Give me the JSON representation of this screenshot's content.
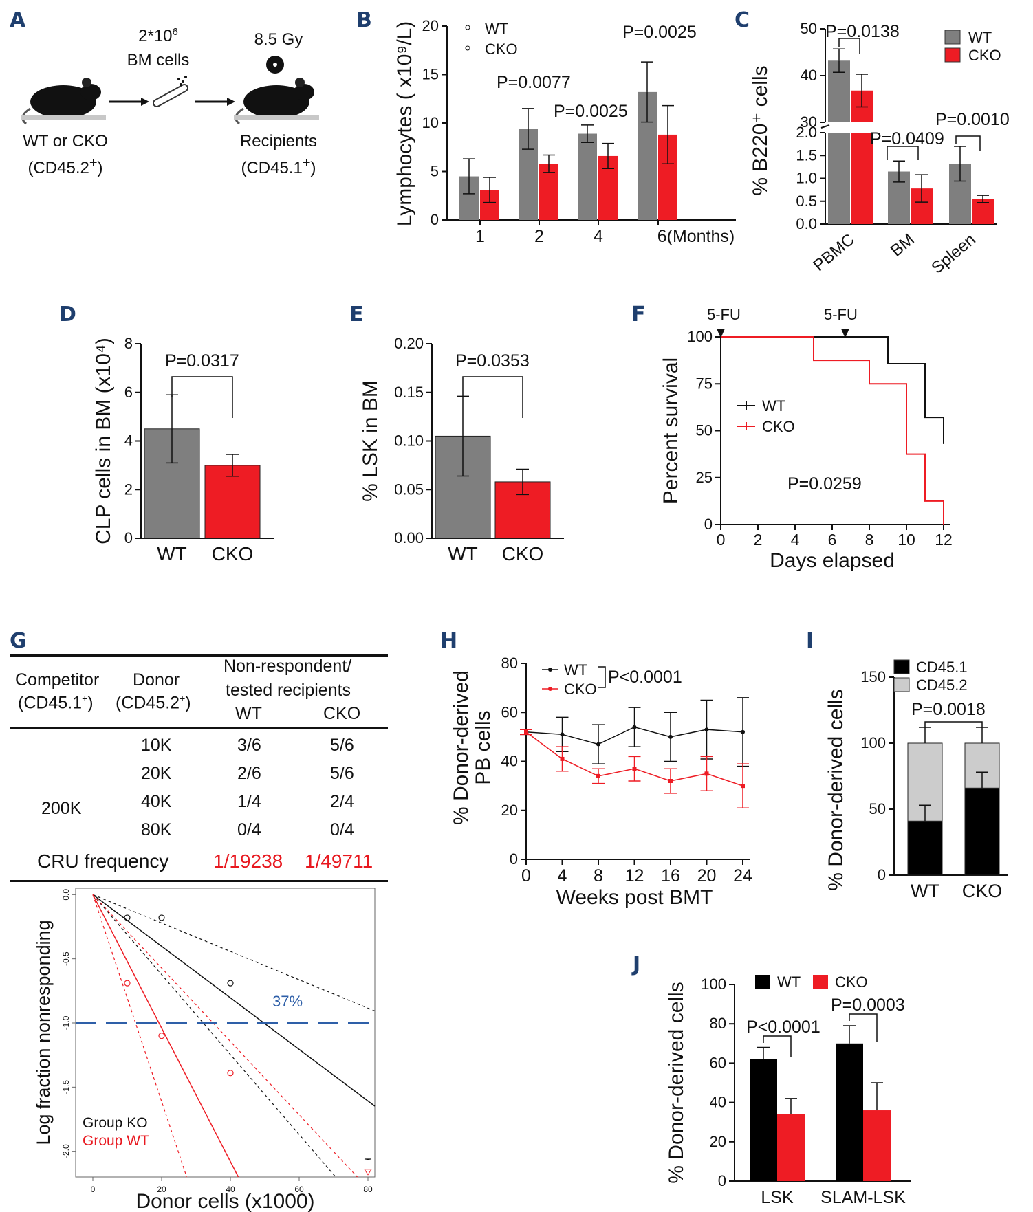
{
  "colors": {
    "wt": "#7f7f7f",
    "cko": "#ee1c24",
    "black": "#000000",
    "lightgray": "#cccccc",
    "blue": "#2e5fa8",
    "red": "#e8181f"
  },
  "panelA": {
    "label": "A",
    "cells": "2*10",
    "cells_sup": "6",
    "cells2": "BM cells",
    "dose": "8.5 Gy",
    "donor": "WT or CKO",
    "donor_marker": "(CD45.2",
    "recipient": "Recipients",
    "recipient_marker": "(CD45.1",
    "plus": "+",
    ")": ")",
    "icons": [
      "mouse-icon",
      "bone-icon",
      "radiation-icon"
    ]
  },
  "panelB": {
    "label": "B",
    "p_values": [
      "P=0.0077",
      "P=0.0025",
      "P=0.0025"
    ]
  },
  "panelC": {
    "label": "C",
    "p_values": [
      "P=0.0138",
      "P=0.0409",
      "P=0.0010"
    ]
  },
  "panelD": {
    "label": "D",
    "p_value": "P=0.0317"
  },
  "panelE": {
    "label": "E",
    "p_value": "P=0.0353"
  },
  "panelF": {
    "label": "F",
    "p_value": "P=0.0259",
    "annotations": [
      "5-FU",
      "5-FU"
    ]
  },
  "panelG": {
    "label": "G",
    "headers": {
      "competitor": "Competitor",
      "competitor_sub": "(CD45.1",
      "donor": "Donor",
      "donor_sub": "(CD45.2",
      "nonresp": "Non-respondent/",
      "tested": "tested recipients",
      "wt": "WT",
      "cko": "CKO"
    },
    "competitor_value": "200K",
    "rows": [
      {
        "donor": "10K",
        "wt": "3/6",
        "cko": "5/6"
      },
      {
        "donor": "20K",
        "wt": "2/6",
        "cko": "5/6"
      },
      {
        "donor": "40K",
        "wt": "1/4",
        "cko": "2/4"
      },
      {
        "donor": "80K",
        "wt": "0/4",
        "cko": "0/4"
      }
    ],
    "cru_label": "CRU frequency",
    "cru_wt": "1/19238",
    "cru_cko": "1/49711",
    "pct37": "37%",
    "legend": [
      "Group KO",
      "Group WT"
    ]
  },
  "panelH": {
    "label": "H",
    "p_value": "P<0.0001"
  },
  "panelI": {
    "label": "I",
    "p_value": "P=0.0018"
  },
  "panelJ": {
    "label": "J",
    "p_values": [
      "P<0.0001",
      "P=0.0003"
    ]
  },
  "chart_data": [
    {
      "id": "B",
      "type": "bar",
      "title": "",
      "xlabel": "",
      "ylabel": "Lymphocytes ( x10⁹/L)",
      "categories": [
        "1",
        "2",
        "4",
        "6(Months)"
      ],
      "ylim": [
        0,
        20
      ],
      "yticks": [
        0,
        5,
        10,
        15,
        20
      ],
      "series": [
        {
          "name": "WT",
          "values": [
            4.5,
            9.4,
            8.9,
            13.2
          ],
          "errors": [
            1.8,
            2.1,
            0.9,
            3.1
          ]
        },
        {
          "name": "CKO",
          "values": [
            3.1,
            5.8,
            6.6,
            8.8
          ],
          "errors": [
            1.3,
            0.9,
            1.3,
            3.0
          ]
        }
      ],
      "legend": "top-left"
    },
    {
      "id": "C",
      "type": "bar",
      "title": "",
      "xlabel": "",
      "ylabel": "% B220⁺ cells",
      "categories": [
        "PBMC",
        "BM",
        "Spleen"
      ],
      "ylim": [
        0,
        50
      ],
      "axis_break": [
        2.0,
        30
      ],
      "yticks_low": [
        "0.0",
        "0.5",
        "1.0",
        "1.5",
        "2.0"
      ],
      "yticks_high": [
        "30",
        "40",
        "50"
      ],
      "series": [
        {
          "name": "WT",
          "values": [
            43.2,
            1.15,
            1.32
          ],
          "errors": [
            2.5,
            0.23,
            0.38
          ]
        },
        {
          "name": "CKO",
          "values": [
            36.8,
            0.78,
            0.55
          ],
          "errors": [
            3.5,
            0.3,
            0.08
          ]
        }
      ],
      "legend": "top-right"
    },
    {
      "id": "D",
      "type": "bar",
      "ylabel": "CLP cells in BM (x10⁴)",
      "categories": [
        "WT",
        "CKO"
      ],
      "values": [
        4.5,
        3.0
      ],
      "errors": [
        1.4,
        0.45
      ],
      "ylim": [
        0,
        8
      ],
      "yticks": [
        0,
        2,
        4,
        6,
        8
      ]
    },
    {
      "id": "E",
      "type": "bar",
      "ylabel": "% LSK in BM",
      "categories": [
        "WT",
        "CKO"
      ],
      "values": [
        0.105,
        0.058
      ],
      "errors": [
        0.041,
        0.013
      ],
      "ylim": [
        0,
        0.2
      ],
      "yticks": [
        "0.00",
        "0.05",
        "0.10",
        "0.15",
        "0.20"
      ]
    },
    {
      "id": "F",
      "type": "line",
      "xlabel": "Days elapsed",
      "ylabel": "Percent survival",
      "xlim": [
        0,
        12
      ],
      "ylim": [
        0,
        100
      ],
      "xticks": [
        0,
        2,
        4,
        6,
        8,
        10,
        12
      ],
      "yticks": [
        0,
        25,
        50,
        75,
        100
      ],
      "arrows_at_days": [
        0,
        6.7
      ],
      "series": [
        {
          "name": "WT",
          "steps": [
            [
              0,
              100
            ],
            [
              9,
              100
            ],
            [
              9,
              85.7
            ],
            [
              11,
              85.7
            ],
            [
              11,
              57.1
            ],
            [
              12,
              57.1
            ],
            [
              12,
              42.9
            ]
          ]
        },
        {
          "name": "CKO",
          "steps": [
            [
              0,
              100
            ],
            [
              5,
              100
            ],
            [
              5,
              87.5
            ],
            [
              8,
              87.5
            ],
            [
              8,
              75
            ],
            [
              10,
              75
            ],
            [
              10,
              37.5
            ],
            [
              11,
              37.5
            ],
            [
              11,
              12.5
            ],
            [
              12,
              12.5
            ],
            [
              12,
              0
            ]
          ]
        }
      ]
    },
    {
      "id": "G",
      "type": "line",
      "xlabel": "Donor cells (x1000)",
      "ylabel": "Log fraction nonresponding",
      "xlim": [
        0,
        80
      ],
      "ylim": [
        -2.2,
        0.05
      ],
      "xticks": [
        0,
        20,
        40,
        60,
        80
      ],
      "yticks": [
        "0.0",
        "-0.5",
        "-1.0",
        "-1.5",
        "-2.0"
      ],
      "reference_y": -1.0,
      "series": [
        {
          "name": "Group KO",
          "points": [
            [
              10,
              -0.18
            ],
            [
              20,
              -0.18
            ],
            [
              40,
              -0.69
            ]
          ],
          "fit_slope": -0.0201
        },
        {
          "name": "Group WT",
          "points": [
            [
              10,
              -0.69
            ],
            [
              20,
              -1.1
            ],
            [
              40,
              -1.39
            ]
          ],
          "fit_slope": -0.052
        }
      ]
    },
    {
      "id": "H",
      "type": "line",
      "xlabel": "Weeks post BMT",
      "ylabel": "% Donor-derived PB cells",
      "x": [
        0,
        4,
        8,
        12,
        16,
        20,
        24
      ],
      "xlim": [
        0,
        24
      ],
      "ylim": [
        0,
        80
      ],
      "yticks": [
        0,
        20,
        40,
        60,
        80
      ],
      "series": [
        {
          "name": "WT",
          "values": [
            52,
            51,
            47,
            54,
            50,
            53,
            52
          ],
          "errors": [
            1,
            7,
            8,
            8,
            10,
            12,
            14
          ]
        },
        {
          "name": "CKO",
          "values": [
            52,
            41,
            34,
            37,
            32,
            35,
            30
          ],
          "errors": [
            1,
            5,
            3,
            5,
            5,
            7,
            9
          ]
        }
      ]
    },
    {
      "id": "I",
      "type": "bar",
      "stacked": true,
      "ylabel": "% Donor-derived cells",
      "categories": [
        "WT",
        "CKO"
      ],
      "ylim": [
        0,
        150
      ],
      "yticks": [
        0,
        50,
        100,
        150
      ],
      "series": [
        {
          "name": "CD45.1",
          "values": [
            41,
            66
          ],
          "errors": [
            12,
            12
          ]
        },
        {
          "name": "CD45.2",
          "values": [
            59,
            34
          ],
          "errors": [
            12,
            12
          ]
        }
      ]
    },
    {
      "id": "J",
      "type": "bar",
      "ylabel": "% Donor-derived cells",
      "categories": [
        "LSK",
        "SLAM-LSK"
      ],
      "ylim": [
        0,
        100
      ],
      "yticks": [
        0,
        20,
        40,
        60,
        80,
        100
      ],
      "series": [
        {
          "name": "WT",
          "values": [
            62,
            70
          ],
          "errors": [
            6,
            9
          ]
        },
        {
          "name": "CKO",
          "values": [
            34,
            36
          ],
          "errors": [
            8,
            14
          ]
        }
      ]
    }
  ]
}
